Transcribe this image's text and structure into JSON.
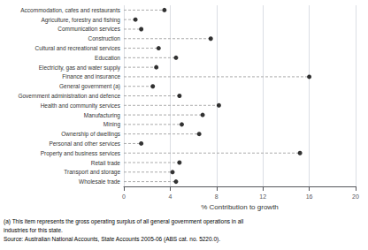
{
  "chart_data": {
    "type": "dot",
    "orientation": "horizontal",
    "categories": [
      "Accommodation, cafes and restaurants",
      "Agriculture, forestry and fishing",
      "Communication services",
      "Construction",
      "Cultural and recreational services",
      "Education",
      "Electricity, gas and water supply",
      "Finance and insurance",
      "General government (a)",
      "Government administration and defence",
      "Health and community services",
      "Manufacturing",
      "Mining",
      "Ownership of dwellings",
      "Personal and other services",
      "Property and business services",
      "Retail trade",
      "Transport and storage",
      "Wholesale trade"
    ],
    "values": [
      3.5,
      1.0,
      1.5,
      7.5,
      3.0,
      4.5,
      2.8,
      16.0,
      2.5,
      4.8,
      8.2,
      6.8,
      5.0,
      6.5,
      1.5,
      15.2,
      4.8,
      4.2,
      4.5
    ],
    "xlabel": "% Contribution to growth",
    "xlim": [
      0,
      20
    ],
    "xticks": [
      0,
      4,
      8,
      12,
      16,
      20
    ],
    "color": "#000000",
    "marker": "circle",
    "line_style": "dashed",
    "grid": true,
    "annotations": [
      "(a) This item represents the gross operating surplus of all general government operations in all",
      "industries for this state.",
      "Source: Australian National Accounts, State Accounts 2005-06 (ABS cat. no. 5220.0)."
    ]
  }
}
